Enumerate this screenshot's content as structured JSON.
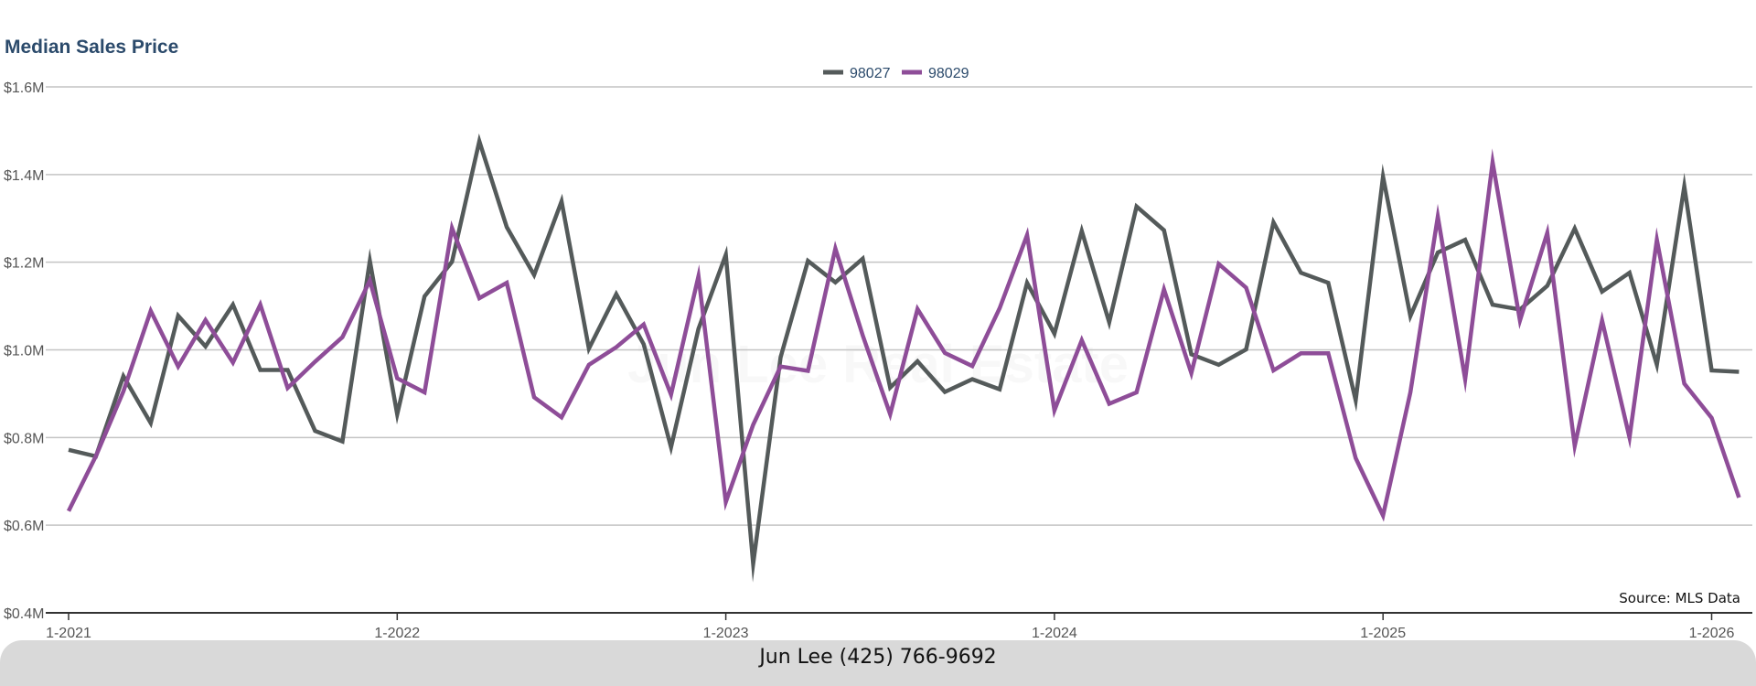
{
  "watermark": "Jun Lee Real Estate",
  "footer": {
    "contact": "Jun Lee (425) 766-9692"
  },
  "chart_data": {
    "type": "line",
    "title": "Median Sales Price",
    "xlabel": "",
    "ylabel": "",
    "ylim": [
      400000,
      1600000
    ],
    "y_ticks": [
      400000,
      600000,
      800000,
      1000000,
      1200000,
      1400000,
      1600000
    ],
    "y_tick_labels": [
      "$0.4M",
      "$0.6M",
      "$0.8M",
      "$1.0M",
      "$1.2M",
      "$1.4M",
      "$1.6M"
    ],
    "x_ticks": [
      "1-2021",
      "1-2022",
      "1-2023",
      "1-2024",
      "1-2025",
      "1-2026"
    ],
    "x": [
      "1-2021",
      "2-2021",
      "3-2021",
      "4-2021",
      "5-2021",
      "6-2021",
      "7-2021",
      "8-2021",
      "9-2021",
      "10-2021",
      "11-2021",
      "12-2021",
      "1-2022",
      "2-2022",
      "3-2022",
      "4-2022",
      "5-2022",
      "6-2022",
      "7-2022",
      "8-2022",
      "9-2022",
      "10-2022",
      "11-2022",
      "12-2022",
      "1-2023",
      "2-2023",
      "3-2023",
      "4-2023",
      "5-2023",
      "6-2023",
      "7-2023",
      "8-2023",
      "9-2023",
      "10-2023",
      "11-2023",
      "12-2023",
      "1-2024",
      "2-2024",
      "3-2024",
      "4-2024",
      "5-2024",
      "6-2024",
      "7-2024",
      "8-2024",
      "9-2024",
      "10-2024",
      "11-2024",
      "12-2024",
      "1-2025",
      "2-2025",
      "3-2025",
      "4-2025",
      "5-2025",
      "6-2025",
      "7-2025",
      "8-2025",
      "9-2025",
      "10-2025",
      "11-2025",
      "12-2025",
      "1-2026",
      "2-2026"
    ],
    "grid": true,
    "legend": "top-center",
    "source": "Source: MLS Data",
    "series": [
      {
        "name": "98027",
        "color": "#545a5a",
        "values": [
          772000,
          757000,
          940000,
          833000,
          1078000,
          1008000,
          1103000,
          954000,
          954000,
          815000,
          791000,
          1203000,
          853000,
          1122000,
          1201000,
          1476000,
          1280000,
          1171000,
          1339000,
          1003000,
          1127000,
          1013000,
          778000,
          1048000,
          1217000,
          512000,
          983000,
          1203000,
          1154000,
          1208000,
          914000,
          974000,
          904000,
          933000,
          910000,
          1153000,
          1037000,
          1271000,
          1063000,
          1327000,
          1273000,
          990000,
          966000,
          1001000,
          1291000,
          1176000,
          1153000,
          885000,
          1395000,
          1077000,
          1222000,
          1251000,
          1103000,
          1092000,
          1146000,
          1277000,
          1133000,
          1176000,
          966000,
          1373000,
          953000,
          950000
        ]
      },
      {
        "name": "98029",
        "color": "#8e4d98",
        "values": [
          632000,
          758000,
          905000,
          1089000,
          962000,
          1068000,
          971000,
          1103000,
          913000,
          973000,
          1029000,
          1158000,
          935000,
          903000,
          1278000,
          1118000,
          1153000,
          892000,
          846000,
          966000,
          1006000,
          1058000,
          898000,
          1168000,
          653000,
          829000,
          962000,
          952000,
          1231000,
          1033000,
          853000,
          1093000,
          993000,
          963000,
          1095000,
          1262000,
          862000,
          1022000,
          877000,
          903000,
          1138000,
          947000,
          1196000,
          1142000,
          953000,
          992000,
          992000,
          753000,
          622000,
          903000,
          1304000,
          933000,
          1428000,
          1067000,
          1267000,
          781000,
          1067000,
          800000,
          1251000,
          923000,
          845000,
          663000
        ]
      }
    ]
  }
}
